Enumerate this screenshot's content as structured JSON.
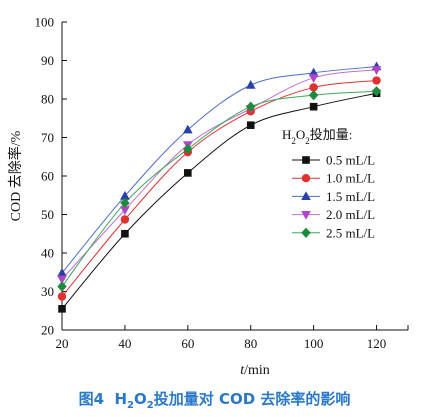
{
  "chart_data": {
    "type": "scatter",
    "x": [
      20,
      40,
      60,
      80,
      100,
      120
    ],
    "xlabel_italic": "t",
    "xlabel_unit": "/min",
    "ylabel": "COD 去除率/%",
    "xlim": [
      20,
      130
    ],
    "ylim": [
      20,
      100
    ],
    "xticks": [
      20,
      40,
      60,
      80,
      100,
      120
    ],
    "yticks": [
      20,
      30,
      40,
      50,
      60,
      70,
      80,
      90,
      100
    ],
    "grid": false,
    "legend_placement": "right-middle",
    "legend_title_parts": [
      "H",
      "2",
      "O",
      "2",
      "投加量:"
    ],
    "series": [
      {
        "name": "0.5 mL/L",
        "marker": "square",
        "marker_color": "#111111",
        "line_color": "#111111",
        "values": [
          25.5,
          45.0,
          60.8,
          73.2,
          78.0,
          81.5
        ]
      },
      {
        "name": "1.0 mL/L",
        "marker": "circle",
        "marker_color": "#e03030",
        "line_color": "#e03030",
        "values": [
          28.7,
          48.7,
          66.2,
          76.8,
          83.0,
          84.8
        ]
      },
      {
        "name": "1.5 mL/L",
        "marker": "triangle",
        "marker_color": "#2a3fa8",
        "line_color": "#4b6cc9",
        "values": [
          34.8,
          54.8,
          72.0,
          83.6,
          86.8,
          88.4
        ]
      },
      {
        "name": "2.0 mL/L",
        "marker": "triangle-down",
        "marker_color": "#b045c8",
        "line_color": "#c070d0",
        "values": [
          33.2,
          51.2,
          68.1,
          77.5,
          85.5,
          87.6
        ]
      },
      {
        "name": "2.5 mL/L",
        "marker": "diamond",
        "marker_color": "#1e8a3c",
        "line_color": "#3aa85a",
        "values": [
          31.3,
          53.0,
          67.0,
          78.0,
          81.0,
          82.0
        ]
      }
    ]
  },
  "caption": {
    "fig": "图4",
    "parts": [
      "H",
      "2",
      "O",
      "2",
      "投加量对 COD 去除率的影响"
    ]
  }
}
